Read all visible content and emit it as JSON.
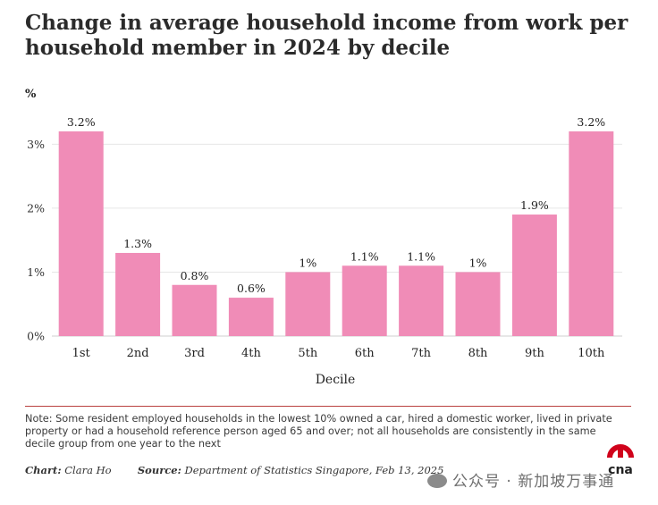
{
  "title": "Change in average household income from work per household member in 2024 by decile",
  "note": "Note: Some resident employed households in the lowest 10% owned a car, hired a domestic worker, lived in private property or had a household reference person aged 65 and over; not all households are consistently in the same decile group from one year to the next",
  "credits": {
    "chart_label": "Chart:",
    "chart_author": "Clara Ho",
    "source_label": "Source:",
    "source_text": "Department of Statistics Singapore, Feb 13, 2025"
  },
  "watermark": "公众号 · 新加坡万事通",
  "logo_text": "cna",
  "colors": {
    "bar": "#f08cb7",
    "title": "#2b2b2b",
    "divider": "#b9413f",
    "logo_red": "#d0021b",
    "grid": "#e6e6e6"
  },
  "chart_data": {
    "type": "bar",
    "title": "Change in average household income from work per household member in 2024 by decile",
    "unit_label": "%",
    "xlabel": "Decile",
    "ylabel": "%",
    "categories": [
      "1st",
      "2nd",
      "3rd",
      "4th",
      "5th",
      "6th",
      "7th",
      "8th",
      "9th",
      "10th"
    ],
    "values": [
      3.2,
      1.3,
      0.8,
      0.6,
      1,
      1.1,
      1.1,
      1,
      1.9,
      3.2
    ],
    "data_labels": [
      "3.2%",
      "1.3%",
      "0.8%",
      "0.6%",
      "1%",
      "1.1%",
      "1.1%",
      "1%",
      "1.9%",
      "3.2%"
    ],
    "yticks": [
      0,
      1,
      2,
      3
    ],
    "ytick_labels": [
      "0%",
      "1%",
      "2%",
      "3%"
    ],
    "ylim": [
      0,
      3.2
    ],
    "grid": true
  }
}
